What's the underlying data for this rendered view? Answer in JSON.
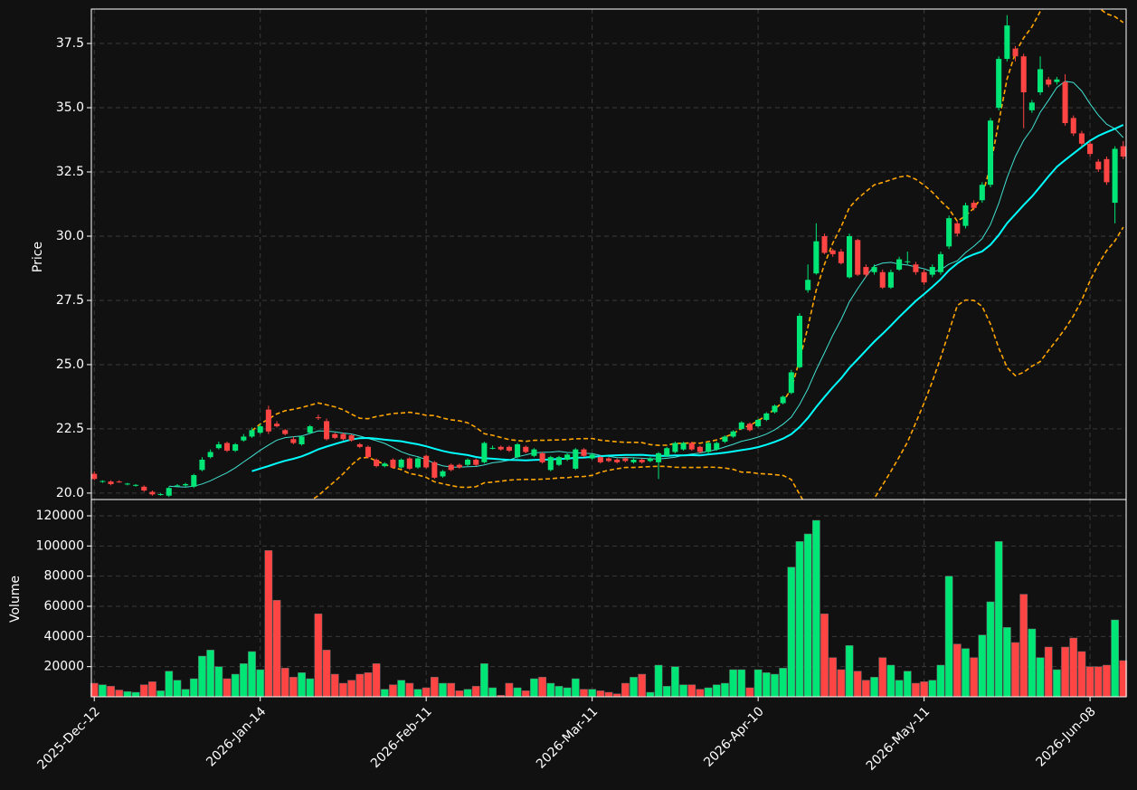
{
  "chart_data": {
    "type": "candlestick",
    "ylabel": "Price",
    "up_color": "#00e676",
    "down_color": "#ff4444",
    "background": "#111111",
    "grid": true,
    "xlim": [
      -0.35,
      124.35
    ],
    "xticks": [
      {
        "value": 0,
        "label": "2025-Dec-12"
      },
      {
        "value": 20,
        "label": "2026-Jan-14"
      },
      {
        "value": 40,
        "label": "2026-Feb-11"
      },
      {
        "value": 60,
        "label": "2026-Mar-11"
      },
      {
        "value": 80,
        "label": "2026-Apr-10"
      },
      {
        "value": 100,
        "label": "2026-May-11"
      },
      {
        "value": 120,
        "label": "2026-Jun-08"
      }
    ],
    "ylim": [
      19.75,
      38.84
    ],
    "yticks": [
      {
        "value": 20,
        "label": "20.0"
      },
      22.5,
      {
        "value": 25,
        "label": "25.0"
      },
      27.5,
      {
        "value": 30,
        "label": "30.0"
      },
      32.5,
      {
        "value": 35,
        "label": "35.0"
      },
      37.5
    ],
    "mav": [
      {
        "window": 10,
        "color": "#40e0d0",
        "width": 1
      },
      {
        "window": 20,
        "color": "#00ffff",
        "width": 2
      }
    ],
    "bollinger": {
      "window": 20,
      "std": 2,
      "color": "#ffa500"
    },
    "open": [
      20.75,
      20.45,
      20.45,
      20.45,
      20.35,
      20.3,
      20.25,
      20.05,
      19.95,
      19.9,
      20.28,
      20.3,
      20.25,
      20.9,
      21.4,
      21.75,
      21.95,
      21.65,
      22.05,
      22.2,
      22.35,
      23.25,
      22.7,
      22.45,
      22.1,
      21.9,
      22.35,
      22.95,
      22.8,
      22.3,
      22.3,
      22.25,
      21.9,
      21.8,
      21.3,
      21.05,
      21.3,
      21.0,
      21.35,
      21.0,
      21.45,
      21.2,
      20.65,
      21.1,
      21.1,
      21.1,
      21.3,
      21.2,
      21.75,
      21.8,
      21.8,
      21.4,
      21.8,
      21.45,
      21.55,
      20.9,
      21.1,
      21.3,
      20.95,
      21.7,
      21.35,
      21.4,
      21.35,
      21.3,
      21.35,
      21.2,
      21.3,
      21.25,
      21.2,
      21.45,
      21.6,
      21.7,
      21.95,
      21.8,
      21.6,
      21.7,
      22.0,
      22.2,
      22.5,
      22.7,
      22.6,
      22.85,
      23.15,
      23.5,
      23.9,
      24.9,
      27.9,
      28.55,
      30.0,
      29.45,
      29.4,
      28.4,
      29.85,
      28.8,
      28.6,
      28.6,
      28.0,
      28.7,
      29.0,
      28.9,
      28.6,
      28.5,
      28.6,
      29.6,
      30.5,
      30.4,
      31.3,
      31.4,
      32.0,
      35.0,
      36.9,
      37.3,
      37.0,
      34.9,
      35.6,
      36.1,
      36.0,
      36.0,
      34.6,
      34.0,
      33.6,
      32.9,
      33.0,
      31.3,
      33.5
    ],
    "high": [
      20.85,
      20.5,
      20.5,
      20.5,
      20.4,
      20.35,
      20.3,
      20.1,
      20.0,
      20.25,
      20.35,
      20.4,
      20.75,
      21.4,
      21.7,
      22.0,
      22.0,
      21.95,
      22.3,
      22.55,
      22.7,
      23.4,
      22.8,
      22.5,
      22.2,
      22.25,
      22.65,
      23.05,
      22.9,
      22.35,
      22.35,
      22.3,
      21.95,
      21.85,
      21.35,
      21.2,
      21.35,
      21.35,
      21.4,
      21.4,
      21.5,
      21.25,
      20.9,
      21.15,
      21.15,
      21.35,
      21.35,
      22.0,
      21.85,
      21.85,
      21.85,
      21.95,
      21.85,
      21.75,
      21.6,
      21.45,
      21.45,
      21.55,
      21.75,
      21.75,
      21.55,
      21.45,
      21.4,
      21.35,
      21.4,
      21.35,
      21.35,
      21.4,
      21.6,
      21.8,
      22.0,
      22.0,
      22.0,
      21.85,
      22.0,
      22.0,
      22.25,
      22.45,
      22.8,
      22.75,
      22.9,
      23.15,
      23.45,
      23.8,
      24.8,
      27.0,
      28.9,
      30.5,
      30.1,
      29.5,
      29.5,
      30.1,
      29.9,
      28.9,
      28.9,
      28.7,
      28.7,
      29.2,
      29.4,
      29.0,
      28.7,
      28.9,
      29.4,
      30.8,
      30.6,
      31.3,
      31.4,
      32.1,
      34.6,
      37.0,
      38.6,
      37.4,
      37.1,
      35.3,
      37.0,
      36.2,
      36.2,
      36.3,
      34.7,
      34.1,
      33.7,
      33.0,
      33.1,
      33.5,
      33.7
    ],
    "low": [
      20.5,
      20.4,
      20.3,
      20.4,
      20.3,
      20.25,
      20.05,
      19.9,
      19.9,
      19.85,
      20.25,
      20.25,
      20.2,
      20.85,
      21.35,
      21.7,
      21.6,
      21.6,
      22.0,
      22.15,
      22.3,
      22.3,
      22.55,
      22.25,
      21.9,
      21.85,
      22.3,
      22.85,
      22.05,
      22.1,
      22.05,
      22.0,
      21.75,
      21.35,
      21.0,
      21.0,
      20.95,
      20.95,
      20.9,
      20.95,
      20.95,
      20.55,
      20.6,
      20.85,
      20.95,
      21.05,
      21.05,
      21.15,
      21.7,
      21.65,
      21.6,
      21.35,
      21.55,
      21.4,
      21.15,
      20.85,
      21.05,
      21.25,
      20.9,
      21.4,
      21.3,
      21.15,
      21.2,
      21.15,
      21.2,
      21.15,
      21.15,
      21.2,
      20.55,
      21.4,
      21.55,
      21.65,
      21.65,
      21.55,
      21.55,
      21.65,
      21.95,
      22.15,
      22.45,
      22.4,
      22.55,
      22.8,
      23.1,
      23.45,
      23.85,
      24.85,
      27.8,
      28.5,
      29.3,
      29.2,
      28.9,
      28.35,
      28.45,
      28.4,
      28.5,
      27.95,
      27.95,
      28.65,
      28.9,
      28.5,
      28.1,
      28.4,
      28.5,
      29.5,
      30.0,
      30.3,
      31.0,
      31.3,
      31.9,
      34.9,
      36.8,
      36.8,
      34.2,
      34.8,
      35.5,
      35.8,
      35.9,
      34.3,
      33.9,
      33.5,
      33.1,
      32.5,
      32.0,
      30.5,
      33.0
    ],
    "close": [
      20.55,
      20.47,
      20.35,
      20.43,
      20.37,
      20.32,
      20.1,
      19.95,
      19.96,
      20.2,
      20.3,
      20.35,
      20.7,
      21.3,
      21.6,
      21.9,
      21.65,
      21.9,
      22.2,
      22.45,
      22.6,
      22.4,
      22.6,
      22.3,
      21.95,
      22.2,
      22.6,
      22.94,
      22.1,
      22.15,
      22.1,
      22.05,
      21.8,
      21.4,
      21.05,
      21.15,
      21.0,
      21.3,
      20.95,
      21.35,
      21.0,
      20.6,
      20.85,
      20.9,
      21.0,
      21.3,
      21.1,
      21.95,
      21.76,
      21.7,
      21.65,
      21.9,
      21.6,
      21.7,
      21.2,
      21.4,
      21.4,
      21.5,
      21.7,
      21.45,
      21.5,
      21.2,
      21.25,
      21.2,
      21.25,
      21.3,
      21.2,
      21.35,
      21.55,
      21.75,
      21.95,
      21.95,
      21.7,
      21.6,
      21.95,
      21.95,
      22.2,
      22.4,
      22.75,
      22.45,
      22.85,
      23.1,
      23.4,
      23.75,
      24.7,
      26.9,
      28.3,
      29.8,
      29.35,
      29.3,
      28.95,
      30.0,
      28.5,
      28.5,
      28.8,
      28.0,
      28.6,
      29.1,
      29.02,
      28.6,
      28.2,
      28.8,
      29.3,
      30.7,
      30.1,
      31.2,
      31.1,
      32.0,
      34.5,
      36.9,
      38.2,
      37.0,
      35.6,
      35.2,
      36.5,
      35.9,
      36.1,
      34.4,
      34.0,
      33.6,
      33.2,
      32.6,
      32.1,
      33.4,
      33.1
    ],
    "volume": {
      "ylabel": "Volume",
      "ylim": [
        0,
        130800
      ],
      "yticks": [
        20000,
        40000,
        60000,
        80000,
        100000,
        120000
      ],
      "values": [
        9000,
        8000,
        7000,
        4500,
        3500,
        3000,
        8000,
        10000,
        4000,
        17000,
        11000,
        5000,
        12000,
        27000,
        31000,
        20000,
        12000,
        15000,
        22000,
        30000,
        18000,
        97000,
        64000,
        19000,
        13000,
        16000,
        12000,
        55000,
        31000,
        15000,
        9000,
        11000,
        15000,
        16000,
        22000,
        5000,
        8000,
        11000,
        9000,
        5000,
        6000,
        13000,
        9000,
        9000,
        4000,
        5000,
        7000,
        22000,
        6000,
        1000,
        9000,
        6000,
        4000,
        12000,
        13000,
        9000,
        7000,
        6000,
        12000,
        5000,
        5000,
        4000,
        3000,
        2000,
        9000,
        13000,
        15000,
        3000,
        21000,
        7000,
        20000,
        8000,
        8000,
        5000,
        6000,
        8000,
        9000,
        18000,
        18000,
        6000,
        18000,
        16000,
        15000,
        19000,
        86000,
        103000,
        108000,
        117000,
        55000,
        26000,
        18000,
        34000,
        17000,
        11000,
        13000,
        26000,
        21000,
        11000,
        17000,
        9000,
        10000,
        11000,
        21000,
        80000,
        35000,
        32000,
        26000,
        41000,
        63000,
        103000,
        46000,
        36000,
        68000,
        45000,
        26000,
        33000,
        18000,
        33000,
        39000,
        30000,
        20000,
        20000,
        21000,
        51000,
        24000
      ]
    }
  }
}
